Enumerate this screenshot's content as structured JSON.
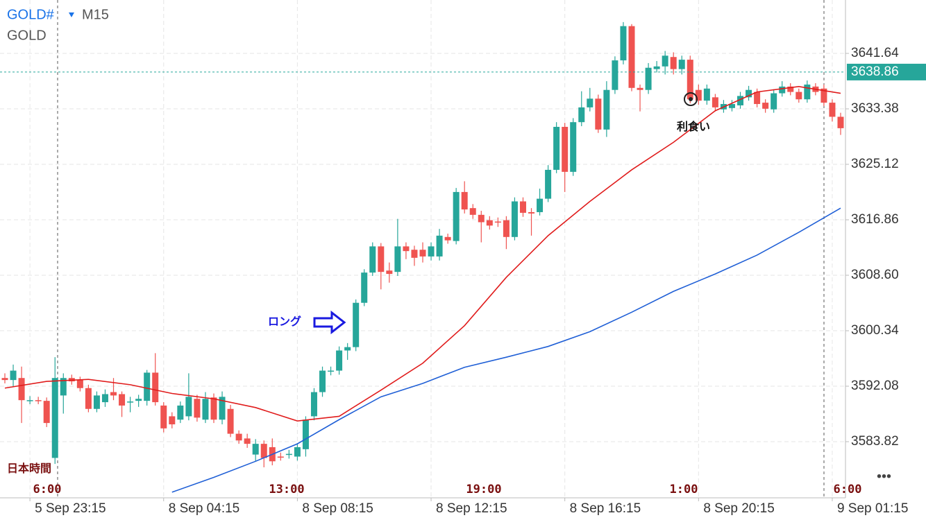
{
  "header": {
    "symbol": "GOLD#",
    "timeframe": "M15",
    "name": "GOLD"
  },
  "chart_data": {
    "type": "candlestick",
    "timezone_label": "日本時間",
    "ylim": [
      3575.46,
      3649.59
    ],
    "yticks": [
      3583.82,
      3592.08,
      3600.34,
      {
        "value": 3608.6,
        "label": "3608.60"
      },
      3616.86,
      3625.12,
      3633.38,
      3641.64
    ],
    "xlim": [
      -0.5,
      100.5
    ],
    "xticks": [
      {
        "value": 3,
        "label": "5 Sep 23:15"
      },
      {
        "value": 19,
        "label": "8 Sep 04:15"
      },
      {
        "value": 35,
        "label": "8 Sep 08:15"
      },
      {
        "value": 51,
        "label": "8 Sep 12:15"
      },
      {
        "value": 67,
        "label": "8 Sep 16:15"
      },
      {
        "value": 83,
        "label": "8 Sep 20:15"
      },
      {
        "value": 99,
        "label": "9 Sep 01:15"
      }
    ],
    "sessions": [
      "6:00",
      "13:00",
      "19:00",
      "1:00",
      "6:00"
    ],
    "current_price": 3638.86,
    "up_color": "#26a69a",
    "down_color": "#ef5350",
    "grid": true,
    "annotations": [
      "ロング",
      "利食い"
    ],
    "open": [
      3593.3,
      3593.0,
      3593.3,
      3589.9,
      3590.0,
      3589.9,
      3581.4,
      3590.7,
      3593.3,
      3593.0,
      3591.8,
      3588.7,
      3589.7,
      3591.2,
      3590.9,
      3589.7,
      3589.9,
      3589.9,
      3594.1,
      3589.2,
      3587.6,
      3587.1,
      3587.6,
      3590.2,
      3587.1,
      3590.4,
      3587.1,
      3588.7,
      3585.0,
      3584.3,
      3581.9,
      3583.5,
      3583.0,
      3581.6,
      3581.9,
      3581.6,
      3582.7,
      3587.6,
      3591.2,
      3594.3,
      3594.4,
      3597.4,
      3597.9,
      3604.5,
      3609.0,
      3612.9,
      3609.3,
      3609.1,
      3612.9,
      3612.4,
      3612.4,
      3611.4,
      3611.4,
      3614.3,
      3613.7,
      3621.0,
      3618.6,
      3617.6,
      3616.8,
      3616.6,
      3616.8,
      3614.3,
      3619.6,
      3618.0,
      3618.0,
      3620.0,
      3624.3,
      3630.7,
      3624.0,
      3631.4,
      3633.6,
      3634.9,
      3630.3,
      3636.2,
      3640.6,
      3645.7,
      3636.5,
      3636.2,
      3639.3,
      3639.7,
      3641.1,
      3639.3,
      3640.7,
      3636.2,
      3634.6,
      3635.1,
      3633.3,
      3633.5,
      3633.9,
      3635.1,
      3635.9,
      3634.3,
      3633.3,
      3635.7,
      3636.7,
      3635.9,
      3634.8,
      3636.7,
      3636.4,
      3634.3,
      3632.2
    ],
    "high": [
      3594.0,
      3595.3,
      3595.0,
      3590.6,
      3590.5,
      3590.4,
      3596.4,
      3594.0,
      3593.8,
      3593.5,
      3592.3,
      3591.3,
      3591.6,
      3593.3,
      3591.3,
      3590.5,
      3590.8,
      3594.5,
      3597.0,
      3589.7,
      3588.2,
      3589.8,
      3594.0,
      3590.8,
      3591.2,
      3591.0,
      3591.3,
      3589.3,
      3585.5,
      3585.0,
      3584.2,
      3584.0,
      3584.3,
      3582.2,
      3582.6,
      3583.6,
      3587.6,
      3591.8,
      3595.0,
      3595.0,
      3598.0,
      3598.5,
      3605.0,
      3609.5,
      3613.5,
      3613.4,
      3610.5,
      3617.0,
      3613.5,
      3613.0,
      3613.5,
      3613.5,
      3615.5,
      3614.8,
      3621.6,
      3622.6,
      3619.2,
      3618.2,
      3617.4,
      3617.2,
      3617.4,
      3620.2,
      3620.2,
      3618.6,
      3621.5,
      3625.0,
      3631.4,
      3631.3,
      3632.0,
      3636.0,
      3636.5,
      3635.5,
      3637.5,
      3641.2,
      3646.3,
      3646.0,
      3637.0,
      3640.2,
      3640.5,
      3642.0,
      3641.8,
      3641.3,
      3641.3,
      3637.0,
      3637.0,
      3635.6,
      3634.7,
      3634.7,
      3635.9,
      3636.8,
      3636.4,
      3634.8,
      3636.3,
      3637.5,
      3637.2,
      3636.4,
      3637.6,
      3637.2,
      3637.0,
      3634.8,
      3632.8
    ],
    "low": [
      3592.5,
      3592.0,
      3586.6,
      3589.4,
      3589.4,
      3586.0,
      3580.5,
      3588.0,
      3592.3,
      3591.3,
      3588.2,
      3588.2,
      3589.0,
      3590.0,
      3587.5,
      3588.2,
      3589.0,
      3589.2,
      3589.2,
      3585.2,
      3585.8,
      3586.6,
      3587.0,
      3586.8,
      3586.6,
      3586.6,
      3586.4,
      3584.5,
      3583.5,
      3582.9,
      3580.9,
      3580.0,
      3580.3,
      3581.0,
      3581.3,
      3581.0,
      3581.6,
      3587.0,
      3590.5,
      3593.7,
      3593.8,
      3596.0,
      3597.3,
      3604.0,
      3608.5,
      3606.5,
      3607.5,
      3608.5,
      3611.0,
      3610.0,
      3610.5,
      3610.8,
      3610.8,
      3613.3,
      3613.2,
      3617.8,
      3617.0,
      3613.5,
      3615.4,
      3615.8,
      3612.5,
      3613.8,
      3617.3,
      3614.5,
      3617.5,
      3619.5,
      3623.8,
      3621.0,
      3623.4,
      3630.8,
      3633.0,
      3629.8,
      3629.2,
      3635.6,
      3640.0,
      3636.0,
      3633.0,
      3635.6,
      3638.8,
      3638.5,
      3638.5,
      3638.5,
      3634.2,
      3634.0,
      3634.0,
      3633.0,
      3632.8,
      3633.0,
      3633.4,
      3634.6,
      3633.6,
      3632.8,
      3632.8,
      3635.2,
      3635.4,
      3634.3,
      3634.3,
      3635.4,
      3633.8,
      3631.5,
      3629.5
    ],
    "close": [
      3593.0,
      3594.4,
      3590.0,
      3590.0,
      3589.9,
      3586.6,
      3593.3,
      3593.3,
      3592.8,
      3591.8,
      3588.7,
      3590.7,
      3590.9,
      3590.7,
      3589.2,
      3589.8,
      3590.2,
      3594.1,
      3589.7,
      3585.8,
      3586.4,
      3589.2,
      3590.5,
      3587.4,
      3590.2,
      3587.1,
      3590.5,
      3585.0,
      3584.0,
      3583.5,
      3583.5,
      3581.4,
      3580.9,
      3581.5,
      3582.0,
      3583.0,
      3587.1,
      3591.2,
      3594.4,
      3594.4,
      3597.4,
      3597.9,
      3604.5,
      3609.0,
      3612.9,
      3609.1,
      3608.8,
      3612.9,
      3612.2,
      3611.2,
      3611.4,
      3612.9,
      3614.5,
      3613.8,
      3621.0,
      3618.4,
      3617.6,
      3616.5,
      3616.0,
      3616.5,
      3614.3,
      3619.6,
      3617.9,
      3617.8,
      3620.0,
      3624.3,
      3630.7,
      3624.0,
      3631.4,
      3633.6,
      3634.9,
      3630.3,
      3636.2,
      3640.6,
      3645.7,
      3636.5,
      3636.2,
      3639.5,
      3639.7,
      3641.3,
      3639.3,
      3640.7,
      3634.8,
      3634.6,
      3636.4,
      3633.6,
      3634.1,
      3634.1,
      3635.3,
      3636.2,
      3634.1,
      3633.4,
      3635.7,
      3636.7,
      3635.9,
      3634.8,
      3637.0,
      3635.9,
      3634.3,
      3632.2,
      3630.5
    ],
    "lines": [
      {
        "color": "#e01b1b",
        "x": [
          0,
          5,
          10,
          15,
          20,
          25,
          30,
          35,
          40,
          45,
          50,
          55,
          60,
          65,
          70,
          75,
          80,
          85,
          90,
          95,
          100
        ],
        "values": [
          3591.8,
          3592.8,
          3593.1,
          3592.3,
          3591.0,
          3590.2,
          3588.9,
          3586.9,
          3587.6,
          3591.5,
          3595.5,
          3601.1,
          3608.3,
          3614.5,
          3619.6,
          3624.3,
          3628.4,
          3633.1,
          3635.9,
          3636.7,
          3635.7
        ]
      },
      {
        "color": "#1f5fd6",
        "x": [
          20,
          25,
          30,
          35,
          40,
          45,
          50,
          55,
          60,
          65,
          70,
          75,
          80,
          85,
          90,
          95,
          100
        ],
        "values": [
          3576.3,
          3578.5,
          3580.9,
          3583.5,
          3587.1,
          3590.5,
          3592.5,
          3594.9,
          3596.4,
          3598.0,
          3600.2,
          3603.1,
          3606.2,
          3608.8,
          3611.6,
          3615.0,
          3618.6
        ]
      }
    ]
  }
}
